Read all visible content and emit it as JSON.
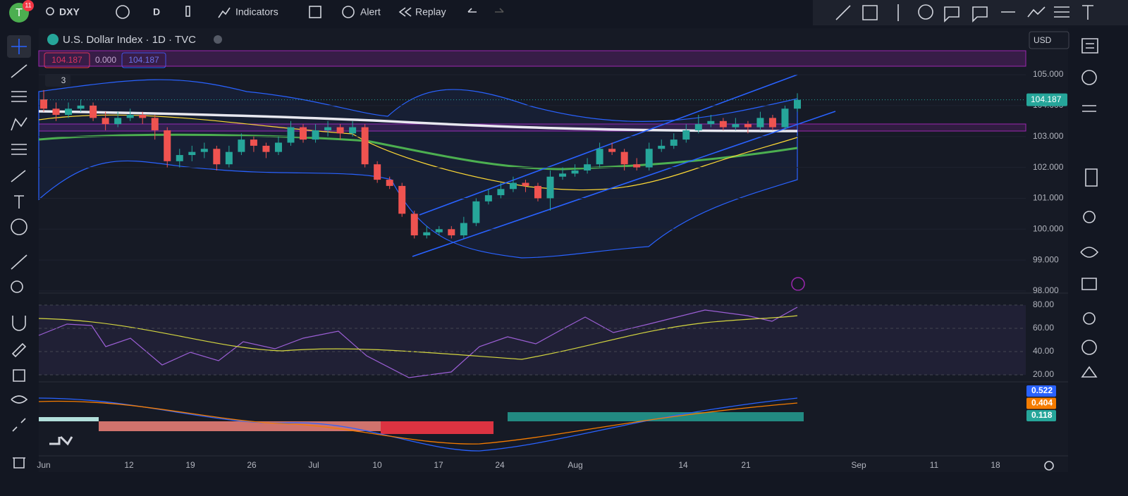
{
  "toolbar": {
    "avatar": "T",
    "badge": "11",
    "symbol": "DXY",
    "interval": "D",
    "indicators": "Indicators",
    "alert": "Alert",
    "replay": "Replay"
  },
  "legend": {
    "title": "U.S. Dollar Index · 1D · TVC",
    "bid": "104.187",
    "spread": "0.000",
    "ask": "104.187",
    "indicator_count": "3",
    "currency": "USD"
  },
  "price_axis": {
    "ticks": [
      {
        "value": 105,
        "label": "105.000"
      },
      {
        "value": 104,
        "label": "104.000"
      },
      {
        "value": 103,
        "label": "103.000"
      },
      {
        "value": 102,
        "label": "102.000"
      },
      {
        "value": 101,
        "label": "101.000"
      },
      {
        "value": 100,
        "label": "100.000"
      },
      {
        "value": 99,
        "label": "99.000"
      },
      {
        "value": 98,
        "label": "98.000"
      }
    ],
    "last": {
      "value": 104.187,
      "label": "104.187"
    }
  },
  "rsi_axis": {
    "ticks": [
      {
        "value": 80,
        "label": "80.00"
      },
      {
        "value": 60,
        "label": "60.00"
      },
      {
        "value": 40,
        "label": "40.00"
      },
      {
        "value": 20,
        "label": "20.00"
      }
    ]
  },
  "macd_labels": [
    {
      "text": "0.522",
      "color": "#2962ff"
    },
    {
      "text": "0.404",
      "color": "#f57c00"
    },
    {
      "text": "0.118",
      "color": "#26a69a"
    }
  ],
  "time_axis": [
    "Jun",
    "12",
    "19",
    "26",
    "Jul",
    "10",
    "17",
    "24",
    "Aug",
    "14",
    "21",
    "Sep",
    "11",
    "18"
  ],
  "up_color": "#26a69a",
  "down_color": "#ef5350",
  "candles": [
    [
      104.2,
      104.5,
      103.8,
      103.9
    ],
    [
      103.9,
      104.1,
      103.5,
      103.7
    ],
    [
      103.7,
      104.1,
      103.6,
      103.9
    ],
    [
      103.9,
      104.2,
      103.8,
      104.0
    ],
    [
      104.0,
      104.1,
      103.5,
      103.6
    ],
    [
      103.6,
      103.8,
      103.2,
      103.4
    ],
    [
      103.4,
      103.8,
      103.3,
      103.6
    ],
    [
      103.6,
      103.9,
      103.5,
      103.7
    ],
    [
      103.7,
      103.8,
      103.4,
      103.6
    ],
    [
      103.6,
      103.7,
      102.9,
      103.2
    ],
    [
      103.2,
      103.3,
      102.0,
      102.2
    ],
    [
      102.2,
      102.6,
      102.0,
      102.4
    ],
    [
      102.4,
      102.7,
      102.2,
      102.5
    ],
    [
      102.5,
      102.8,
      102.3,
      102.6
    ],
    [
      102.6,
      102.7,
      101.9,
      102.1
    ],
    [
      102.1,
      102.7,
      102.0,
      102.5
    ],
    [
      102.5,
      103.1,
      102.4,
      102.9
    ],
    [
      102.9,
      103.0,
      102.5,
      102.7
    ],
    [
      102.7,
      102.8,
      102.3,
      102.5
    ],
    [
      102.5,
      103.0,
      102.4,
      102.8
    ],
    [
      102.8,
      103.5,
      102.7,
      103.3
    ],
    [
      103.3,
      103.4,
      102.8,
      102.9
    ],
    [
      102.9,
      103.4,
      102.8,
      103.2
    ],
    [
      103.2,
      103.5,
      103.0,
      103.3
    ],
    [
      103.3,
      103.4,
      102.9,
      103.1
    ],
    [
      103.1,
      103.5,
      103.0,
      103.3
    ],
    [
      103.3,
      103.4,
      102.0,
      102.1
    ],
    [
      102.1,
      102.2,
      101.5,
      101.6
    ],
    [
      101.6,
      101.7,
      101.3,
      101.4
    ],
    [
      101.4,
      101.5,
      100.4,
      100.5
    ],
    [
      100.5,
      100.6,
      99.7,
      99.8
    ],
    [
      99.8,
      100.1,
      99.7,
      99.9
    ],
    [
      99.9,
      100.1,
      99.8,
      100.0
    ],
    [
      100.0,
      100.1,
      99.7,
      99.8
    ],
    [
      99.8,
      100.4,
      99.7,
      100.2
    ],
    [
      100.2,
      101.0,
      100.1,
      100.9
    ],
    [
      100.9,
      101.3,
      100.8,
      101.1
    ],
    [
      101.1,
      101.5,
      101.0,
      101.3
    ],
    [
      101.3,
      101.7,
      101.2,
      101.5
    ],
    [
      101.5,
      101.6,
      101.2,
      101.4
    ],
    [
      101.4,
      101.5,
      100.9,
      101.0
    ],
    [
      101.0,
      101.9,
      100.6,
      101.7
    ],
    [
      101.7,
      102.0,
      101.6,
      101.8
    ],
    [
      101.8,
      102.1,
      101.7,
      101.9
    ],
    [
      101.9,
      102.3,
      101.8,
      102.1
    ],
    [
      102.1,
      102.8,
      102.0,
      102.6
    ],
    [
      102.6,
      102.8,
      102.4,
      102.5
    ],
    [
      102.5,
      102.6,
      101.9,
      102.1
    ],
    [
      102.1,
      102.3,
      101.9,
      102.0
    ],
    [
      102.0,
      102.8,
      101.9,
      102.6
    ],
    [
      102.6,
      102.9,
      102.5,
      102.7
    ],
    [
      102.7,
      103.1,
      102.6,
      102.9
    ],
    [
      102.9,
      103.4,
      102.8,
      103.2
    ],
    [
      103.2,
      103.7,
      103.1,
      103.4
    ],
    [
      103.4,
      103.7,
      103.3,
      103.5
    ],
    [
      103.5,
      103.6,
      103.2,
      103.3
    ],
    [
      103.3,
      103.6,
      103.2,
      103.4
    ],
    [
      103.4,
      103.5,
      103.1,
      103.3
    ],
    [
      103.3,
      103.8,
      103.2,
      103.6
    ],
    [
      103.6,
      103.7,
      103.2,
      103.3
    ],
    [
      103.3,
      104.0,
      103.2,
      103.9
    ],
    [
      103.9,
      104.4,
      103.8,
      104.187
    ]
  ]
}
